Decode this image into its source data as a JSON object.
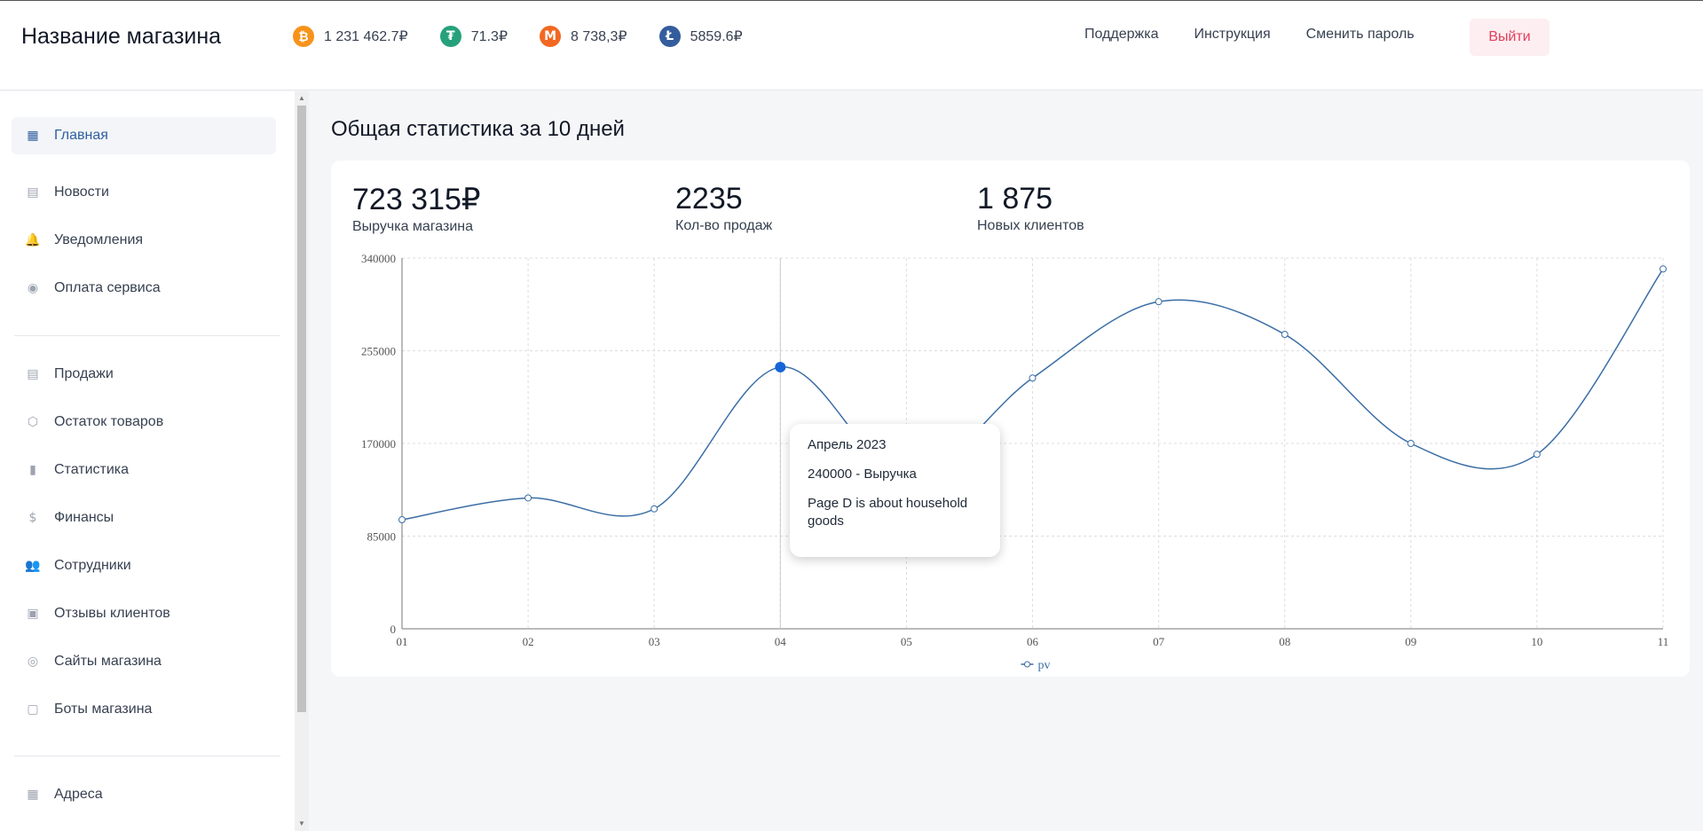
{
  "header": {
    "brand": "Название магазина",
    "coins": [
      {
        "symbol": "₿",
        "value": "1 231 462.7₽",
        "color": "#f7931a",
        "icon": "bitcoin-icon"
      },
      {
        "symbol": "₮",
        "value": "71.3₽",
        "color": "#26a17b",
        "icon": "tether-icon"
      },
      {
        "symbol": "M",
        "value": "8 738,3₽",
        "color": "#f26822",
        "icon": "monero-icon"
      },
      {
        "symbol": "Ł",
        "value": "5859.6₽",
        "color": "#345d9d",
        "icon": "litecoin-icon"
      }
    ],
    "nav": [
      "Поддержка",
      "Инструкция",
      "Сменить пароль"
    ],
    "logout": "Выйти"
  },
  "sidebar": {
    "items": [
      {
        "label": "Главная",
        "icon": "grid-icon",
        "glyph": "▦",
        "active": true
      },
      {
        "label": "Новости",
        "icon": "newspaper-icon",
        "glyph": "▤"
      },
      {
        "label": "Уведомления",
        "icon": "bell-icon",
        "glyph": "🔔"
      },
      {
        "label": "Оплата сервиса",
        "icon": "database-icon",
        "glyph": "◉"
      },
      {
        "label": "Продажи",
        "icon": "list-icon",
        "glyph": "▤"
      },
      {
        "label": "Остаток товаров",
        "icon": "box-icon",
        "glyph": "⬡"
      },
      {
        "label": "Статистика",
        "icon": "chart-icon",
        "glyph": "▮"
      },
      {
        "label": "Финансы",
        "icon": "dollar-icon",
        "glyph": "$"
      },
      {
        "label": "Сотрудники",
        "icon": "users-icon",
        "glyph": "👥"
      },
      {
        "label": "Отзывы клиентов",
        "icon": "message-icon",
        "glyph": "▣"
      },
      {
        "label": "Сайты магазина",
        "icon": "globe-icon",
        "glyph": "◎"
      },
      {
        "label": "Боты магазина",
        "icon": "bot-icon",
        "glyph": "▢"
      },
      {
        "label": "Адреса",
        "icon": "grid-icon",
        "glyph": "▦"
      }
    ]
  },
  "main": {
    "title": "Общая статистика за 10 дней",
    "stats": [
      {
        "value": "723 315₽",
        "label": "Выручка магазина"
      },
      {
        "value": "2235",
        "label": "Кол-во продаж"
      },
      {
        "value": "1 875",
        "label": "Новых клиентов"
      }
    ],
    "tooltip": {
      "title": "Апрель 2023",
      "value": "240000 - Выручка",
      "note": "Page D is about household goods"
    }
  },
  "chart_data": {
    "type": "line",
    "categories": [
      "01",
      "02",
      "03",
      "04",
      "05",
      "06",
      "07",
      "08",
      "09",
      "10",
      "11"
    ],
    "series": [
      {
        "name": "pv",
        "values": [
          100000,
          120000,
          110000,
          240000,
          140000,
          230000,
          300000,
          270000,
          170000,
          160000,
          330000
        ]
      }
    ],
    "ylim": [
      0,
      340000
    ],
    "yticks": [
      0,
      85000,
      170000,
      255000,
      340000
    ],
    "highlight_index": 3,
    "grid": true,
    "legend": "bottom-center",
    "color": "#3b6ea5"
  }
}
